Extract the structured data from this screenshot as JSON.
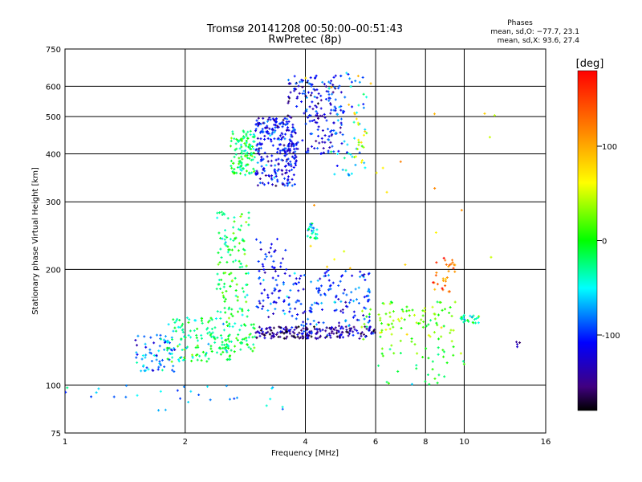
{
  "chart_data": {
    "type": "scatter",
    "title": "Tromsø 20141208 00:50:00–00:51:43",
    "subtitle": "RwPretec (8p)",
    "xlabel": "Frequency [MHz]",
    "ylabel": "Stationary phase Virtual Height [km]",
    "xscale": "log",
    "yscale": "log",
    "xlim": [
      1,
      16
    ],
    "ylim": [
      75,
      750
    ],
    "x_ticks": [
      1,
      2,
      4,
      6,
      8,
      10,
      16
    ],
    "y_ticks": [
      75,
      100,
      200,
      300,
      400,
      500,
      600,
      750
    ],
    "x_gridlines": [
      2,
      4,
      6,
      8,
      10
    ],
    "y_gridlines": [
      100,
      200,
      300,
      400,
      500,
      600
    ],
    "grid": true,
    "phase_info": {
      "title": "Phases",
      "line_o": "mean, sd,O: −77.7, 23.1",
      "line_x": "mean, sd,X:  93.6, 27.4"
    },
    "colorbar": {
      "label": "[deg]",
      "min": -180,
      "max": 180,
      "ticks": [
        100,
        0,
        -100
      ]
    },
    "clusters": [
      {
        "x_min": 2.6,
        "x_max": 3.0,
        "y_min": 350,
        "y_max": 460,
        "phase": -15,
        "count": 120
      },
      {
        "x_min": 3.0,
        "x_max": 3.8,
        "y_min": 330,
        "y_max": 500,
        "phase": -110,
        "count": 260
      },
      {
        "x_min": 3.6,
        "x_max": 5.0,
        "y_min": 400,
        "y_max": 640,
        "phase": -120,
        "count": 180
      },
      {
        "x_min": 4.5,
        "x_max": 5.7,
        "y_min": 350,
        "y_max": 650,
        "phase": -70,
        "count": 60
      },
      {
        "x_min": 5.3,
        "x_max": 5.7,
        "y_min": 380,
        "y_max": 520,
        "phase": 60,
        "count": 18
      },
      {
        "x_min": 2.4,
        "x_max": 2.9,
        "y_min": 150,
        "y_max": 290,
        "phase": -10,
        "count": 120
      },
      {
        "x_min": 3.0,
        "x_max": 3.6,
        "y_min": 150,
        "y_max": 240,
        "phase": -110,
        "count": 70
      },
      {
        "x_min": 3.6,
        "x_max": 5.8,
        "y_min": 140,
        "y_max": 200,
        "phase": -100,
        "count": 150
      },
      {
        "x_min": 4.0,
        "x_max": 4.3,
        "y_min": 240,
        "y_max": 265,
        "phase": -50,
        "count": 25
      },
      {
        "x_min": 1.5,
        "x_max": 1.9,
        "y_min": 108,
        "y_max": 135,
        "phase": -80,
        "count": 70
      },
      {
        "x_min": 1.8,
        "x_max": 2.6,
        "y_min": 115,
        "y_max": 150,
        "phase": -20,
        "count": 140
      },
      {
        "x_min": 2.5,
        "x_max": 3.0,
        "y_min": 122,
        "y_max": 145,
        "phase": -15,
        "count": 50
      },
      {
        "x_min": 3.0,
        "x_max": 6.0,
        "y_min": 132,
        "y_max": 142,
        "phase": -140,
        "count": 200
      },
      {
        "x_min": 5.5,
        "x_max": 9.5,
        "y_min": 130,
        "y_max": 165,
        "phase": 20,
        "count": 90
      },
      {
        "x_min": 8.3,
        "x_max": 9.5,
        "y_min": 175,
        "y_max": 215,
        "phase": 130,
        "count": 30
      },
      {
        "x_min": 9.8,
        "x_max": 11.0,
        "y_min": 145,
        "y_max": 152,
        "phase": -30,
        "count": 25
      },
      {
        "x_min": 1.0,
        "x_max": 3.6,
        "y_min": 85,
        "y_max": 100,
        "phase": -70,
        "count": 30
      },
      {
        "x_min": 6.0,
        "x_max": 10.0,
        "y_min": 100,
        "y_max": 130,
        "phase": 0,
        "count": 40
      },
      {
        "x_min": 4.0,
        "x_max": 12.0,
        "y_min": 200,
        "y_max": 650,
        "phase": 80,
        "count": 25
      },
      {
        "x_min": 13.5,
        "x_max": 13.8,
        "y_min": 125,
        "y_max": 130,
        "phase": -120,
        "count": 4
      }
    ]
  }
}
